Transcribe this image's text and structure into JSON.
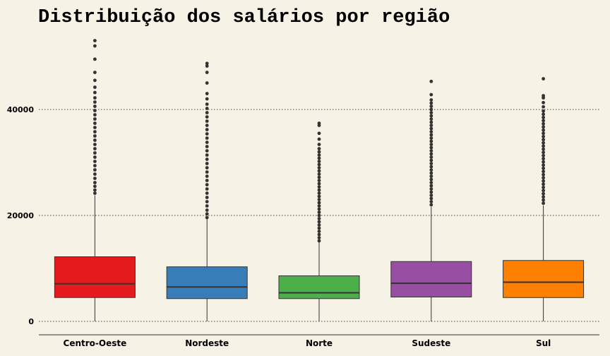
{
  "chart_data": {
    "type": "box",
    "title": "Distribuição dos salários por região",
    "xlabel": "",
    "ylabel": "",
    "ylim": [
      0,
      55000
    ],
    "y_ticks": [
      0,
      20000,
      40000
    ],
    "y_tick_labels": [
      "0",
      "20000",
      "40000"
    ],
    "grid": "horizontal-dotted",
    "legend": "none",
    "categories": [
      "Centro-Oeste",
      "Nordeste",
      "Norte",
      "Sudeste",
      "Sul"
    ],
    "colors": [
      "#e41a1c",
      "#377eb8",
      "#4daf4a",
      "#984ea3",
      "#ff7f00"
    ],
    "boxes": [
      {
        "category": "Centro-Oeste",
        "whisker_low": 0,
        "q1": 4500,
        "median": 7100,
        "q3": 12200,
        "whisker_high": 23800,
        "outliers": [
          24200,
          24800,
          25500,
          26200,
          27000,
          27800,
          28600,
          29400,
          30200,
          31000,
          31800,
          32600,
          33400,
          34200,
          35000,
          35800,
          36600,
          37400,
          38200,
          39000,
          39800,
          40600,
          41400,
          42200,
          43200,
          44200,
          45500,
          47000,
          49500,
          52000,
          53000
        ]
      },
      {
        "category": "Nordeste",
        "whisker_low": 0,
        "q1": 4300,
        "median": 6500,
        "q3": 10300,
        "whisker_high": 19300,
        "outliers": [
          19600,
          20300,
          21000,
          21800,
          22600,
          23400,
          24200,
          25000,
          25800,
          26600,
          27400,
          28200,
          29000,
          29800,
          30600,
          31400,
          32200,
          33000,
          33800,
          34600,
          35400,
          36200,
          37000,
          37800,
          38600,
          39400,
          40200,
          41000,
          42000,
          43000,
          45000,
          47000,
          48200,
          48700
        ]
      },
      {
        "category": "Norte",
        "whisker_low": 0,
        "q1": 4300,
        "median": 5400,
        "q3": 8600,
        "whisker_high": 14900,
        "outliers": [
          15200,
          15800,
          16400,
          17000,
          17600,
          18200,
          18800,
          19400,
          20000,
          20600,
          21200,
          21800,
          22400,
          23000,
          23600,
          24200,
          24800,
          25400,
          26000,
          26600,
          27200,
          27800,
          28400,
          29000,
          29600,
          30200,
          30800,
          31400,
          32000,
          32600,
          33400,
          34400,
          35500,
          37000,
          37400
        ]
      },
      {
        "category": "Sudeste",
        "whisker_low": 0,
        "q1": 4600,
        "median": 7200,
        "q3": 11300,
        "whisker_high": 21600,
        "outliers": [
          22000,
          22600,
          23200,
          23800,
          24400,
          25000,
          25600,
          26200,
          26800,
          27400,
          28000,
          28600,
          29200,
          29800,
          30400,
          31000,
          31600,
          32200,
          32800,
          33400,
          34000,
          34600,
          35200,
          35800,
          36400,
          37000,
          37600,
          38200,
          38800,
          39400,
          40000,
          40600,
          41200,
          41800,
          42800,
          45300
        ]
      },
      {
        "category": "Sul",
        "whisker_low": 0,
        "q1": 4500,
        "median": 7400,
        "q3": 11500,
        "whisker_high": 21900,
        "outliers": [
          22300,
          22900,
          23500,
          24100,
          24700,
          25300,
          25900,
          26500,
          27100,
          27700,
          28300,
          28900,
          29500,
          30100,
          30700,
          31300,
          31900,
          32500,
          33100,
          33700,
          34300,
          34900,
          35500,
          36100,
          36700,
          37300,
          37900,
          38500,
          39100,
          39700,
          40500,
          41300,
          42200,
          42600,
          45800
        ]
      }
    ]
  }
}
